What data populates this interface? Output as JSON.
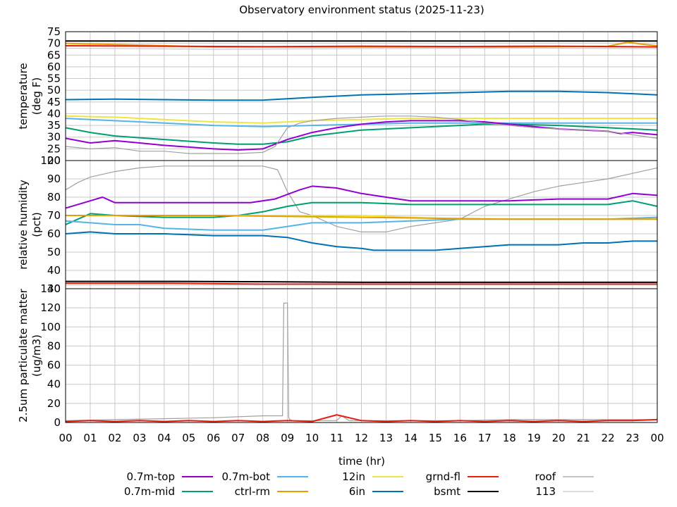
{
  "chart_data": {
    "type": "line",
    "title": "Observatory environment status (2025-11-23)",
    "xlabel": "time (hr)",
    "x_ticks": [
      "00",
      "01",
      "02",
      "03",
      "04",
      "05",
      "06",
      "07",
      "08",
      "09",
      "10",
      "11",
      "12",
      "13",
      "14",
      "15",
      "16",
      "17",
      "18",
      "19",
      "20",
      "21",
      "22",
      "23",
      "00"
    ],
    "grid": true,
    "legend_position": "bottom",
    "legend": [
      {
        "name": "0.7m-top",
        "color": "#9400d3"
      },
      {
        "name": "0.7m-mid",
        "color": "#009e73"
      },
      {
        "name": "0.7m-bot",
        "color": "#56b4e9"
      },
      {
        "name": "ctrl-rm",
        "color": "#e69f00"
      },
      {
        "name": "12in",
        "color": "#f0e442"
      },
      {
        "name": "6in",
        "color": "#0072b2"
      },
      {
        "name": "grnd-fl",
        "color": "#e51e10"
      },
      {
        "name": "bsmt",
        "color": "#000000"
      },
      {
        "name": "roof",
        "color": "#a0a0a0"
      },
      {
        "name": "113",
        "color": "#c8c8c8"
      }
    ],
    "panels": [
      {
        "ylabel": [
          "temperature",
          "(deg F)"
        ],
        "ylim": [
          20,
          75
        ],
        "yticks": [
          20,
          25,
          30,
          35,
          40,
          45,
          50,
          55,
          60,
          65,
          70,
          75
        ],
        "series": [
          {
            "name": "bsmt",
            "x": [
              0,
              24
            ],
            "y": [
              71,
              71
            ]
          },
          {
            "name": "ctrl-rm",
            "x": [
              0,
              2,
              6,
              12,
              18,
              22,
              22.8,
              23.5,
              24
            ],
            "y": [
              70,
              69.5,
              68.5,
              68.5,
              68.5,
              68.8,
              70.5,
              69.5,
              69
            ]
          },
          {
            "name": "grnd-fl",
            "x": [
              0,
              4,
              8,
              12,
              16,
              20,
              24
            ],
            "y": [
              69,
              68.8,
              68.6,
              68.8,
              68.7,
              68.8,
              68.5
            ]
          },
          {
            "name": "113",
            "x": [
              0,
              6,
              12,
              18,
              24
            ],
            "y": [
              68,
              67.5,
              67.8,
              68,
              67.8
            ]
          },
          {
            "name": "6in",
            "x": [
              0,
              2,
              4,
              6,
              8,
              10,
              12,
              14,
              16,
              18,
              20,
              22,
              24
            ],
            "y": [
              46,
              46.2,
              46,
              45.8,
              45.8,
              47,
              48,
              48.5,
              49,
              49.5,
              49.5,
              49,
              48
            ]
          },
          {
            "name": "12in",
            "x": [
              0,
              2,
              4,
              6,
              8,
              10,
              12,
              14,
              16,
              18,
              20,
              22,
              24
            ],
            "y": [
              39,
              38.5,
              37.5,
              36.5,
              36,
              37,
              37.5,
              38,
              38,
              38,
              38,
              38,
              38
            ]
          },
          {
            "name": "0.7m-bot",
            "x": [
              0,
              2,
              4,
              6,
              8,
              10,
              12,
              14,
              16,
              18,
              20,
              22,
              24
            ],
            "y": [
              38,
              37,
              36,
              35,
              34.5,
              35,
              35.5,
              36,
              36,
              36,
              36,
              36,
              36
            ]
          },
          {
            "name": "0.7m-mid",
            "x": [
              0,
              1,
              2,
              4,
              6,
              7,
              8,
              9,
              10,
              12,
              14,
              16,
              17,
              18,
              20,
              22,
              24
            ],
            "y": [
              34,
              32,
              30.5,
              29,
              27.5,
              27,
              27,
              28,
              30.5,
              33,
              34,
              35,
              35.5,
              35.5,
              35,
              34,
              33
            ]
          },
          {
            "name": "0.7m-top",
            "x": [
              0,
              1,
              2,
              3,
              4,
              6,
              7,
              8,
              9,
              10,
              11,
              12,
              13,
              14,
              15,
              16,
              17,
              18,
              19,
              20,
              21,
              22,
              22.5,
              23,
              24
            ],
            "y": [
              29.5,
              27.5,
              28.5,
              27.5,
              26.5,
              25,
              24.5,
              25,
              29,
              32,
              34,
              35.5,
              36.5,
              37,
              37,
              37,
              36.5,
              35.5,
              34.5,
              33.5,
              33,
              32.5,
              31.5,
              32,
              31
            ]
          },
          {
            "name": "roof",
            "x": [
              0,
              1,
              2,
              3,
              4,
              5,
              6,
              7,
              8,
              8.5,
              9,
              9.5,
              10,
              11,
              12,
              13,
              14,
              15,
              16,
              17,
              18,
              19,
              20,
              21,
              22,
              23,
              24
            ],
            "y": [
              26,
              25,
              25.5,
              24,
              24,
              23,
              23,
              23,
              23.5,
              26,
              34,
              36,
              37,
              38,
              38.5,
              39,
              39,
              38.5,
              37.5,
              36,
              35,
              34,
              33.5,
              33,
              32.5,
              31,
              29.5
            ]
          }
        ]
      },
      {
        "ylabel": [
          "relative humidity",
          "(pct)"
        ],
        "ylim": [
          30,
          100
        ],
        "yticks": [
          30,
          40,
          50,
          60,
          70,
          80,
          90,
          100
        ],
        "series": [
          {
            "name": "roof",
            "x": [
              0,
              0.5,
              1,
              2,
              3,
              4,
              5,
              6,
              7,
              8,
              8.6,
              9,
              9.5,
              10,
              11,
              12,
              13,
              14,
              15,
              16,
              17,
              18,
              19,
              20,
              21,
              22,
              23,
              24
            ],
            "y": [
              84,
              88,
              91,
              94,
              96,
              97,
              97,
              97,
              97,
              97,
              95,
              83,
              72,
              70,
              64,
              61,
              61,
              64,
              66,
              68,
              75,
              79,
              83,
              86,
              88,
              90,
              93,
              96
            ]
          },
          {
            "name": "0.7m-top",
            "x": [
              0,
              1,
              1.5,
              2,
              4,
              6,
              7.5,
              8.5,
              9.5,
              10,
              11,
              12,
              13,
              14,
              16,
              18,
              20,
              22,
              23,
              24
            ],
            "y": [
              74,
              78,
              80,
              77,
              77,
              77,
              77,
              79,
              84,
              86,
              85,
              82,
              80,
              78,
              78,
              78,
              79,
              79,
              82,
              81
            ]
          },
          {
            "name": "0.7m-mid",
            "x": [
              0,
              0.5,
              1,
              2,
              4,
              6,
              7,
              8,
              9,
              10,
              12,
              14,
              16,
              18,
              19,
              20,
              22,
              23,
              24
            ],
            "y": [
              65,
              68,
              71,
              70,
              69,
              69,
              70,
              72,
              75,
              77,
              77,
              76,
              76,
              76,
              76,
              76,
              76,
              78,
              75
            ]
          },
          {
            "name": "12in",
            "x": [
              0,
              4,
              6,
              8,
              12,
              14,
              16,
              20,
              24
            ],
            "y": [
              70,
              70,
              70,
              70,
              70,
              69,
              68,
              68,
              68
            ]
          },
          {
            "name": "0.7m-bot",
            "x": [
              0,
              1,
              2,
              3,
              4,
              6,
              8,
              9,
              10,
              12,
              14,
              16,
              18,
              20,
              22,
              24
            ],
            "y": [
              67,
              66,
              65,
              65,
              63,
              62,
              62,
              64,
              66,
              66,
              67,
              68,
              68,
              68,
              68,
              69
            ]
          },
          {
            "name": "ctrl-rm",
            "x": [
              0,
              6,
              12,
              18,
              24
            ],
            "y": [
              70,
              70,
              69,
              68,
              68
            ]
          },
          {
            "name": "6in",
            "x": [
              0,
              1,
              2,
              4,
              6,
              7,
              8,
              9,
              10,
              11,
              12,
              12.5,
              13,
              14,
              15,
              16,
              17,
              18,
              19,
              20,
              21,
              22,
              23,
              24
            ],
            "y": [
              60,
              61,
              60,
              60,
              59,
              59,
              59,
              58,
              55,
              53,
              52,
              51,
              51,
              51,
              51,
              52,
              53,
              54,
              54,
              54,
              55,
              55,
              56,
              56
            ]
          },
          {
            "name": "grnd-fl",
            "x": [
              0,
              4,
              8,
              12,
              16,
              20,
              24
            ],
            "y": [
              33,
              33,
              32.5,
              32.5,
              32.5,
              32.5,
              32.5
            ]
          },
          {
            "name": "113",
            "x": [
              0,
              8,
              16,
              24
            ],
            "y": [
              32,
              32,
              32,
              32
            ]
          },
          {
            "name": "bsmt",
            "x": [
              0,
              4,
              8,
              12,
              16,
              20,
              24
            ],
            "y": [
              34,
              34,
              33.8,
              33.5,
              33.5,
              33.5,
              33.5
            ]
          }
        ]
      },
      {
        "ylabel": [
          "2.5um particulate matter",
          "(ug/m3)"
        ],
        "ylim": [
          0,
          140
        ],
        "yticks": [
          0,
          20,
          40,
          60,
          80,
          100,
          120,
          140
        ],
        "series": [
          {
            "name": "roof",
            "x": [
              0,
              2,
              4,
              6,
              8,
              8.8,
              8.85,
              8.9,
              9.0,
              9.05,
              9.1,
              9.2,
              9.5,
              10,
              11,
              11.2,
              11.5,
              12,
              14,
              16,
              18,
              20,
              22,
              24
            ],
            "y": [
              2,
              3,
              4,
              5,
              7,
              7,
              125,
              125,
              125,
              5,
              3,
              2,
              2,
              2,
              2,
              7,
              2,
              2,
              2,
              2,
              3,
              3,
              3,
              3
            ]
          },
          {
            "name": "grnd-fl",
            "x": [
              0,
              1,
              2,
              3,
              4,
              5,
              6,
              7,
              8,
              9,
              10,
              11,
              12,
              13,
              14,
              15,
              16,
              17,
              18,
              19,
              20,
              21,
              22,
              23,
              24
            ],
            "y": [
              1,
              2,
              1,
              2,
              1,
              2,
              1,
              2,
              1,
              2,
              1,
              8,
              2,
              1,
              2,
              1,
              2,
              1,
              2,
              1,
              2,
              1,
              2,
              2,
              3
            ]
          }
        ]
      }
    ]
  }
}
